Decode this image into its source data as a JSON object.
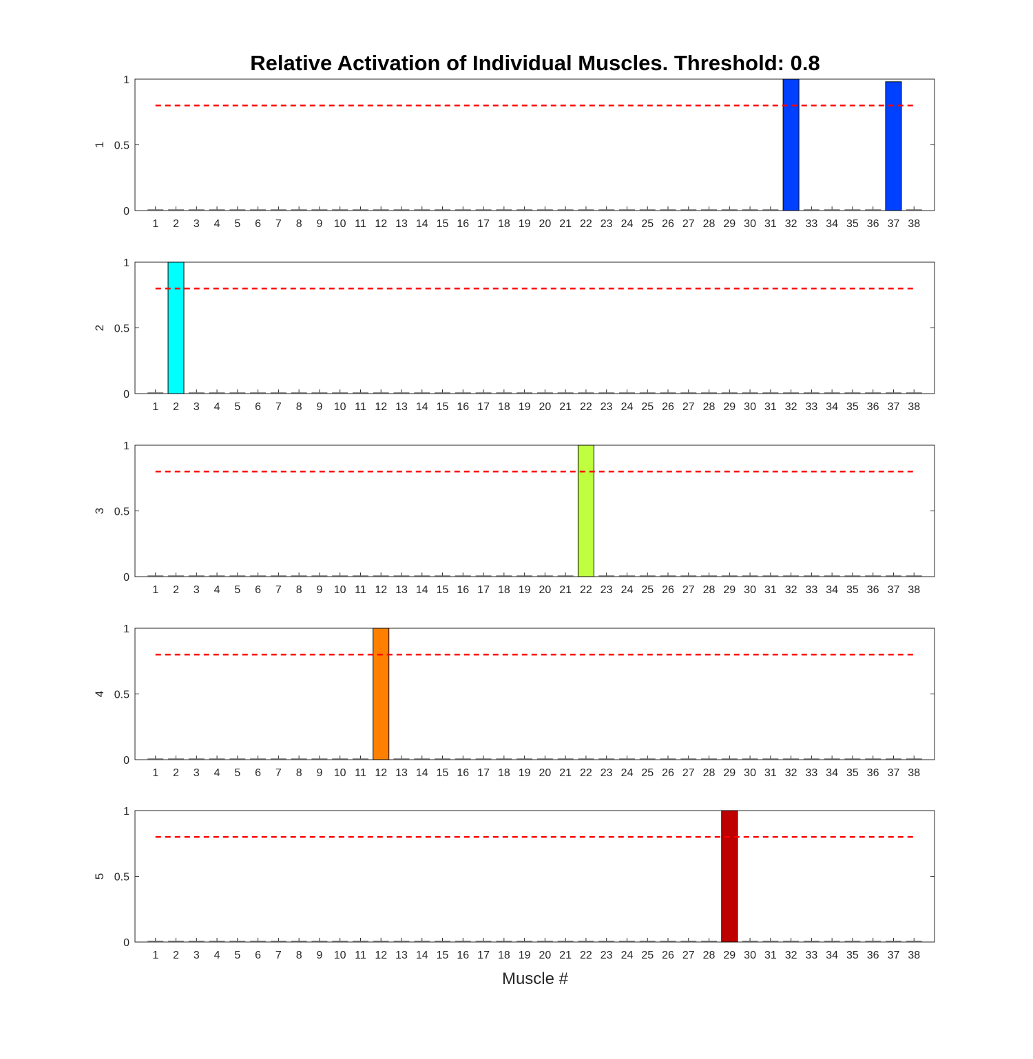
{
  "chart_data": {
    "type": "bar",
    "title": "Relative Activation of Individual Muscles. Threshold: 0.8",
    "xlabel": "Muscle #",
    "threshold": 0.8,
    "threshold_color": "#ff0000",
    "categories": [
      "1",
      "2",
      "3",
      "4",
      "5",
      "6",
      "7",
      "8",
      "9",
      "10",
      "11",
      "12",
      "13",
      "14",
      "15",
      "16",
      "17",
      "18",
      "19",
      "20",
      "21",
      "22",
      "23",
      "24",
      "25",
      "26",
      "27",
      "28",
      "29",
      "30",
      "31",
      "32",
      "33",
      "34",
      "35",
      "36",
      "37",
      "38"
    ],
    "ylim": [
      0,
      1
    ],
    "yticks": [
      0,
      0.5,
      1
    ],
    "ytick_labels": [
      "0",
      "0.5",
      "1"
    ],
    "grid": false,
    "subplots": [
      {
        "ylabel": "1",
        "color": "#0040ff",
        "values": [
          0,
          0,
          0,
          0,
          0,
          0,
          0,
          0,
          0,
          0,
          0,
          0,
          0,
          0,
          0,
          0,
          0,
          0,
          0,
          0,
          0,
          0,
          0,
          0,
          0,
          0,
          0,
          0,
          0,
          0,
          0,
          1,
          0,
          0,
          0,
          0,
          0.98,
          0
        ]
      },
      {
        "ylabel": "2",
        "color": "#00ffff",
        "values": [
          0,
          1,
          0,
          0,
          0,
          0,
          0,
          0,
          0,
          0,
          0,
          0,
          0,
          0,
          0,
          0,
          0,
          0,
          0,
          0,
          0,
          0,
          0,
          0,
          0,
          0,
          0,
          0,
          0,
          0,
          0,
          0,
          0,
          0,
          0,
          0,
          0,
          0
        ]
      },
      {
        "ylabel": "3",
        "color": "#bfff40",
        "values": [
          0,
          0,
          0,
          0,
          0,
          0,
          0,
          0,
          0,
          0,
          0,
          0,
          0,
          0,
          0,
          0,
          0,
          0,
          0,
          0,
          0,
          1,
          0,
          0,
          0,
          0,
          0,
          0,
          0,
          0,
          0,
          0,
          0,
          0,
          0,
          0,
          0,
          0
        ]
      },
      {
        "ylabel": "4",
        "color": "#ff8000",
        "values": [
          0,
          0,
          0,
          0,
          0,
          0,
          0,
          0,
          0,
          0,
          0,
          1,
          0,
          0,
          0,
          0,
          0,
          0,
          0,
          0,
          0,
          0,
          0,
          0,
          0,
          0,
          0,
          0,
          0,
          0,
          0,
          0,
          0,
          0,
          0,
          0,
          0,
          0
        ]
      },
      {
        "ylabel": "5",
        "color": "#bf0000",
        "values": [
          0,
          0,
          0,
          0,
          0,
          0,
          0,
          0,
          0,
          0,
          0,
          0,
          0,
          0,
          0,
          0,
          0,
          0,
          0,
          0,
          0,
          0,
          0,
          0,
          0,
          0,
          0,
          0,
          1,
          0,
          0,
          0,
          0,
          0,
          0,
          0,
          0,
          0
        ]
      }
    ]
  }
}
